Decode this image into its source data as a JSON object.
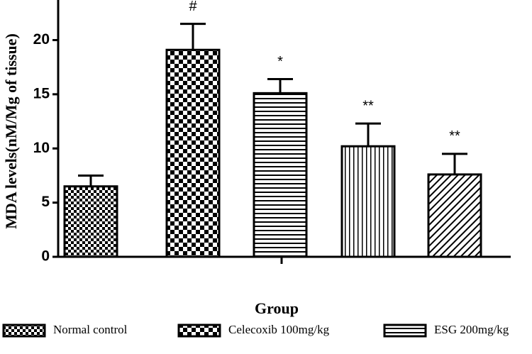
{
  "chart_data": {
    "type": "bar",
    "y_label": "MDA levels(nM/Mg of tissue)",
    "x_label": "Group",
    "categories": [
      "Normal control",
      "Celecoxib 100mg/kg",
      "ESG 200mg/kg",
      null,
      null
    ],
    "values": [
      6.5,
      19.1,
      15.1,
      10.2,
      7.6
    ],
    "errors": [
      1.0,
      2.4,
      1.3,
      2.1,
      1.9
    ],
    "annotations": [
      null,
      "#",
      "*",
      "**",
      "**"
    ],
    "patterns": [
      "checker-small",
      "checker-large",
      "horizontal",
      "vertical",
      "diagonal"
    ],
    "color": "#000000",
    "ylim": [
      0,
      23.7
    ],
    "yticks": [
      0,
      5,
      10,
      15,
      20
    ]
  }
}
